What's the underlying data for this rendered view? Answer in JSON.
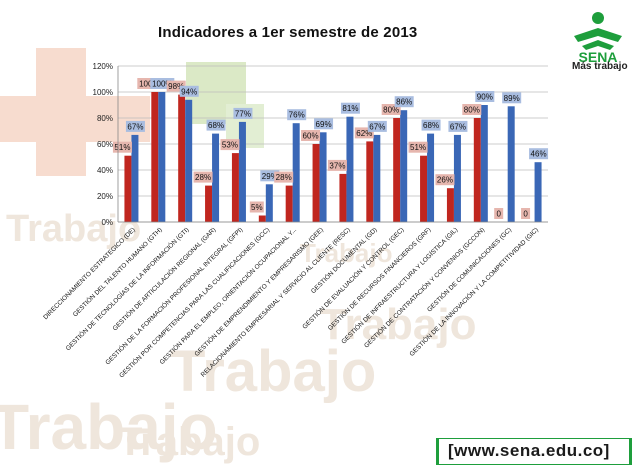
{
  "slide": {
    "title": "Indicadores  a 1er semestre de 2013",
    "logo_text": "SENA",
    "tagline": "Más trabajo",
    "url": "[www.sena.edu.co]",
    "watermark_word": "Trabajo"
  },
  "colors": {
    "red_series": "#c0261f",
    "blue_series": "#3a67b6",
    "red_label_bg": "#e6b6ae",
    "blue_label_bg": "#a9bde0",
    "brand_green": "#1e9e3c"
  },
  "chart_data": {
    "type": "bar",
    "ylim": [
      0,
      120
    ],
    "yticks": [
      "0%",
      "20%",
      "40%",
      "60%",
      "80%",
      "100%",
      "120%"
    ],
    "grid": true,
    "categories": [
      "DIRECCIONAMIENTO ESTRATEGICO (DE)",
      "GESTIÓN DEL TALENTO HUMANO (GTH)",
      "GESTIÓN DE TECNOLOGÍAS DE LA INFORMACIÓN (GTI)",
      "GESTIÓN DE ARTICULACIÓN REGIONAL (GAR)",
      "GESTIÓN DE LA FORMACIÓN PROFESIONAL INTEGRAL (GFPI)",
      "GESTIÓN POR COMPETENCIAS PARA LAS CUALIFICACIONES (GCC)",
      "GESTIÓN PARA EL EMPLEO, ORIENTACIÓN OCUPACIONAL Y...",
      "GESTIÓN DE EMPRENDIMIENTO Y EMPRESARISMO (GEE)",
      "RELACIONAMIENTO EMPRESARIAL Y SERVICIO AL CLIENTE (RESC)",
      "GESTIÓN DOCUMENTAL (GD)",
      "GESTIÓN DE EVALUACIÓN Y CONTROL (GEC)",
      "GESTIÓN DE RECURSOS FINANCIEROS (GRF)",
      "GESTIÓN DE INFRAESTRUCTURA Y LOGÍSTICA (GIL)",
      "GESTIÓN DE CONTRATACIÓN Y CONVENIOS (GCCON)",
      "GESTIÓN DE COMUNICACIONES (GC)",
      "GESTIÓN DE LA INNOVACIÓN Y LA COMPETITIVIDAD (GIC)"
    ],
    "series": [
      {
        "values": [
          51,
          100,
          98,
          28,
          53,
          5,
          28,
          60,
          37,
          62,
          80,
          51,
          26,
          80,
          0,
          0
        ],
        "labels": [
          "51%",
          "100%",
          "98%",
          "28%",
          "53%",
          "5%",
          "28%",
          "60%",
          "37%",
          "62%",
          "80%",
          "51%",
          "26%",
          "80%",
          "0",
          "0"
        ]
      },
      {
        "values": [
          67,
          100,
          94,
          68,
          77,
          29,
          76,
          69,
          81,
          67,
          86,
          68,
          67,
          90,
          89,
          46
        ],
        "labels": [
          "67%",
          "100%",
          "94%",
          "68%",
          "77%",
          "29%",
          "76%",
          "69%",
          "81%",
          "67%",
          "86%",
          "68%",
          "67%",
          "90%",
          "89%",
          "46%"
        ]
      }
    ]
  }
}
